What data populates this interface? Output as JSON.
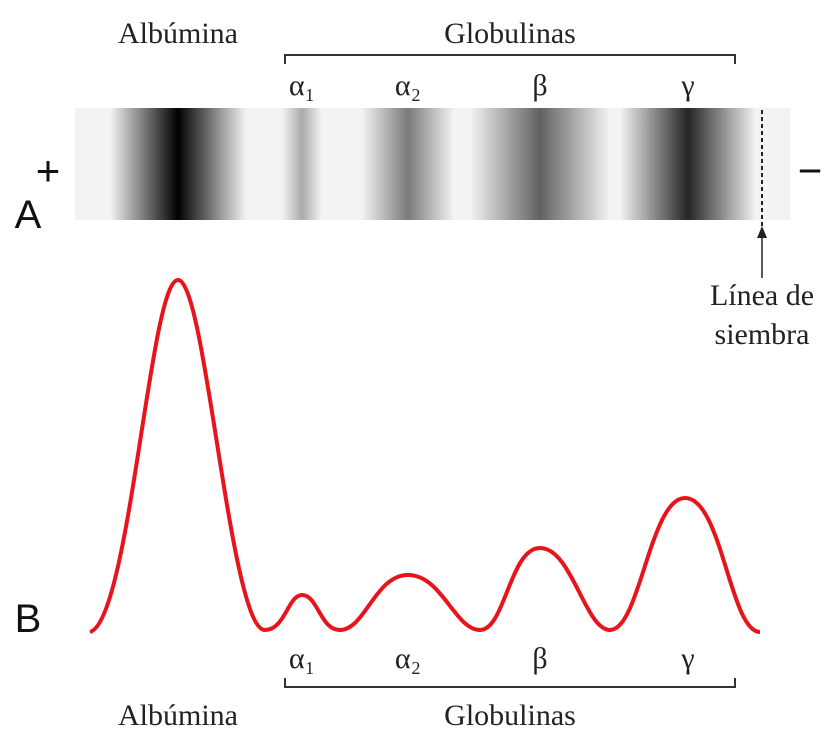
{
  "panel_a": {
    "label": "A",
    "anode": "+",
    "cathode": "−",
    "albumin": "Albúmina",
    "globulins": "Globulinas",
    "fractions": [
      "α₁",
      "α₂",
      "β",
      "γ"
    ],
    "seeding_line": [
      "Línea de",
      "siembra"
    ]
  },
  "panel_b": {
    "label": "B",
    "albumin": "Albúmina",
    "globulins": "Globulinas",
    "fractions": [
      "α₁",
      "α₂",
      "β",
      "γ"
    ]
  }
}
